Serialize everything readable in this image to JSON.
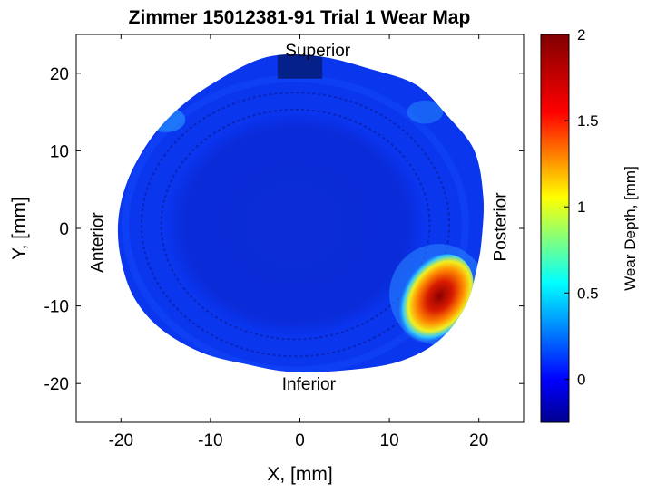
{
  "chart_data": {
    "type": "heatmap",
    "title": "Zimmer 15012381-91 Trial 1 Wear Map",
    "xlabel": "X, [mm]",
    "ylabel": "Y, [mm]",
    "xlim": [
      -25,
      25
    ],
    "ylim": [
      -25,
      25
    ],
    "x_ticks": [
      "-20",
      "-10",
      "0",
      "10",
      "20"
    ],
    "y_ticks": [
      "20",
      "10",
      "0",
      "-10",
      "-20"
    ],
    "x_tick_values": [
      -20,
      -10,
      0,
      10,
      20
    ],
    "y_tick_values": [
      20,
      10,
      0,
      -10,
      -20
    ],
    "annotations": [
      {
        "text": "Superior",
        "x": 2,
        "y": 23
      },
      {
        "text": "Inferior",
        "x": 1,
        "y": -20
      },
      {
        "text": "Anterior",
        "x": -22,
        "y": -1,
        "rotation": -90
      },
      {
        "text": "Posterior",
        "x": 23,
        "y": 1,
        "rotation": -90
      }
    ],
    "colorbar": {
      "label": "Wear Depth, [mm]",
      "range": [
        -0.25,
        2.0
      ],
      "ticks": [
        "2",
        "1.5",
        "1",
        "0.5",
        "0"
      ],
      "tick_values": [
        2,
        1.5,
        1,
        0.5,
        0
      ],
      "colormap": "jet"
    },
    "wear_region": {
      "peak_depth_mm": 1.9,
      "center": [
        15,
        -9
      ],
      "location": "posterior-inferior"
    },
    "grid": false,
    "colors": {
      "background_field": "#0a2fe6",
      "inner_cup": "#0b28d2",
      "max": "#7f0000",
      "min": "#00008f"
    }
  }
}
